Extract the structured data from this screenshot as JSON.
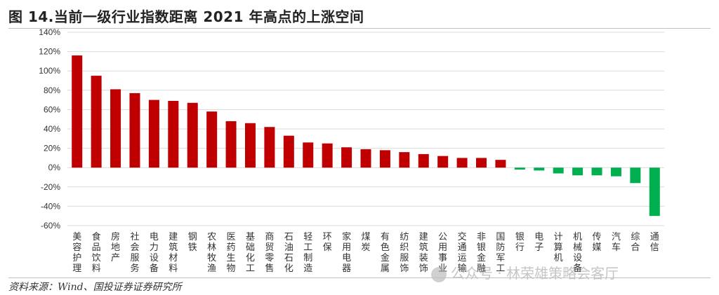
{
  "title": "图 14.当前一级行业指数距离 2021 年高点的上涨空间",
  "source": "资料来源：Wind、国投证券证券研究所",
  "watermark": "公众号 · 林荣雄策略会客厅",
  "colors": {
    "positive": "#c00000",
    "negative": "#00b050",
    "grid": "#d9d9d9",
    "axis_text": "#333333"
  },
  "chart_data": {
    "type": "bar",
    "categories": [
      "美容护理",
      "食品饮料",
      "房地产",
      "社会服务",
      "电力设备",
      "建筑材料",
      "钢铁",
      "农林牧渔",
      "医药生物",
      "基础化工",
      "商贸零售",
      "石油石化",
      "轻工制造",
      "环保",
      "家用电器",
      "煤炭",
      "有色金属",
      "纺织服饰",
      "建筑装饰",
      "公用事业",
      "交通运输",
      "非银金融",
      "国防军工",
      "银行",
      "电子",
      "计算机",
      "机械设备",
      "传媒",
      "汽车",
      "综合",
      "通信"
    ],
    "values": [
      116,
      95,
      81,
      77,
      70,
      69,
      67,
      58,
      48,
      46,
      42,
      33,
      26,
      25,
      21,
      19,
      18,
      16,
      14,
      12,
      10,
      10,
      8,
      -2,
      -3,
      -6,
      -8,
      -8,
      -9,
      -16,
      -50
    ],
    "ylim": [
      -60,
      140
    ],
    "yticks": [
      "-60%",
      "-40%",
      "-20%",
      "0%",
      "20%",
      "40%",
      "60%",
      "80%",
      "100%",
      "120%",
      "140%"
    ],
    "y_unit": "%",
    "grid": true,
    "xlabel": "",
    "ylabel": ""
  }
}
